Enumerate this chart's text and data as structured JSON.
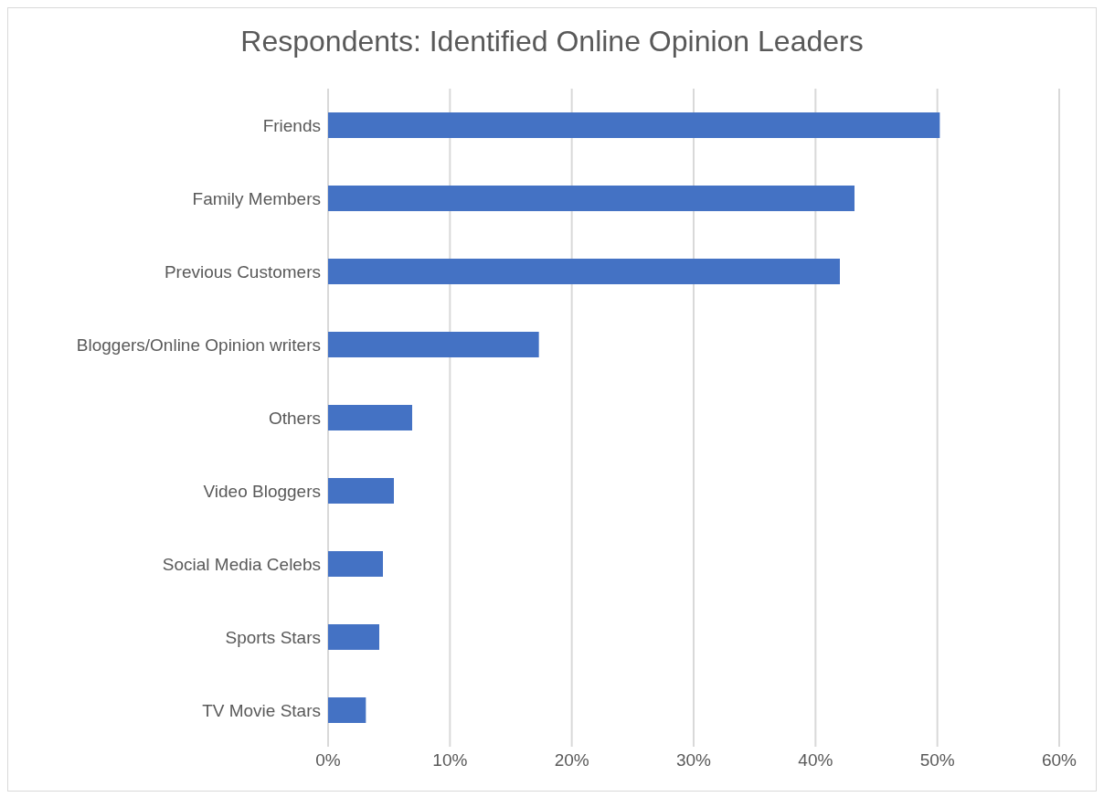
{
  "chart_data": {
    "type": "bar",
    "orientation": "horizontal",
    "title": "Respondents: Identified Online Opinion Leaders",
    "categories": [
      "Friends",
      "Family Members",
      "Previous Customers",
      "Bloggers/Online Opinion writers",
      "Others",
      "Video Bloggers",
      "Social Media Celebs",
      "Sports Stars",
      "TV Movie Stars"
    ],
    "values": [
      50.2,
      43.2,
      42.0,
      17.3,
      6.9,
      5.4,
      4.5,
      4.2,
      3.1
    ],
    "color": "#4472c4",
    "xlim": [
      0,
      60
    ],
    "xticks": [
      {
        "value": 0,
        "label": "0%"
      },
      {
        "value": 10,
        "label": "10%"
      },
      {
        "value": 20,
        "label": "20%"
      },
      {
        "value": 30,
        "label": "30%"
      },
      {
        "value": 40,
        "label": "40%"
      },
      {
        "value": 50,
        "label": "50%"
      },
      {
        "value": 60,
        "label": "60%"
      }
    ],
    "grid": "x"
  }
}
